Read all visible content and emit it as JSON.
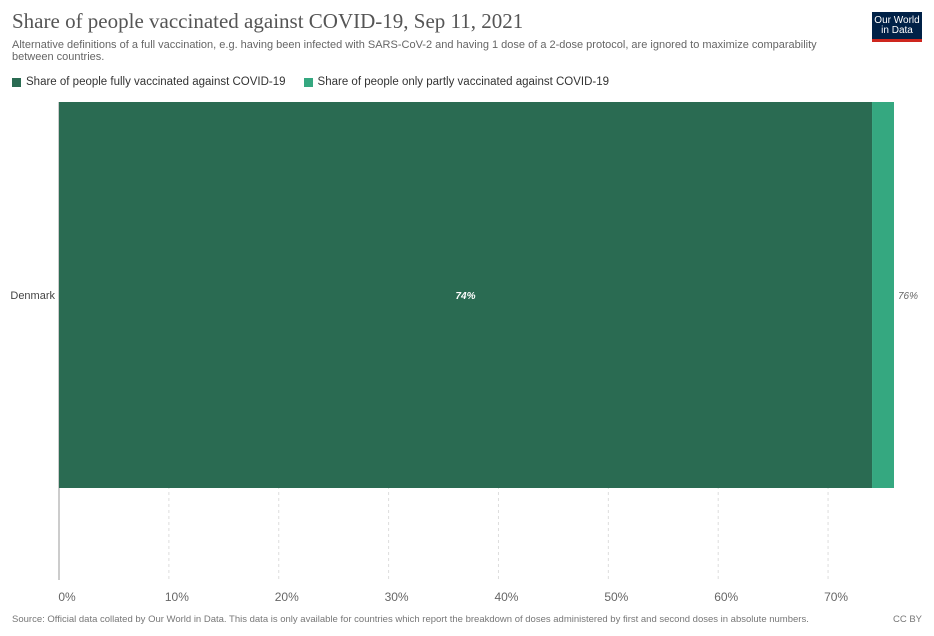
{
  "header": {
    "title": "Share of people vaccinated against COVID-19, Sep 11, 2021",
    "subtitle": "Alternative definitions of a full vaccination, e.g. having been infected with SARS-CoV-2 and having 1 dose of a 2-dose protocol, are ignored to maximize comparability between countries.",
    "logo_line1": "Our World",
    "logo_line2": "in Data"
  },
  "footer": {
    "source": "Source: Official data collated by Our World in Data. This data is only available for countries which report the breakdown of doses administered by first and second doses in absolute numbers.",
    "license": "CC BY"
  },
  "colors": {
    "fully": "#2a6b52",
    "partly": "#35a880",
    "grid": "#dddddd",
    "axis": "#999999",
    "text": "#555555"
  },
  "chart_data": {
    "type": "bar",
    "orientation": "horizontal",
    "stacked": true,
    "categories": [
      "Denmark"
    ],
    "series": [
      {
        "name": "Share of people fully vaccinated against COVID-19",
        "values": [
          74
        ],
        "labels": [
          "74%"
        ]
      },
      {
        "name": "Share of people only partly vaccinated against COVID-19",
        "values": [
          2
        ]
      }
    ],
    "totals": [
      "76%"
    ],
    "xlim": [
      0,
      76
    ],
    "xticks": [
      0,
      10,
      20,
      30,
      40,
      50,
      60,
      70
    ],
    "xtick_labels": [
      "0%",
      "10%",
      "20%",
      "30%",
      "40%",
      "50%",
      "60%",
      "70%"
    ],
    "grid": true,
    "legend_position": "top-left"
  }
}
